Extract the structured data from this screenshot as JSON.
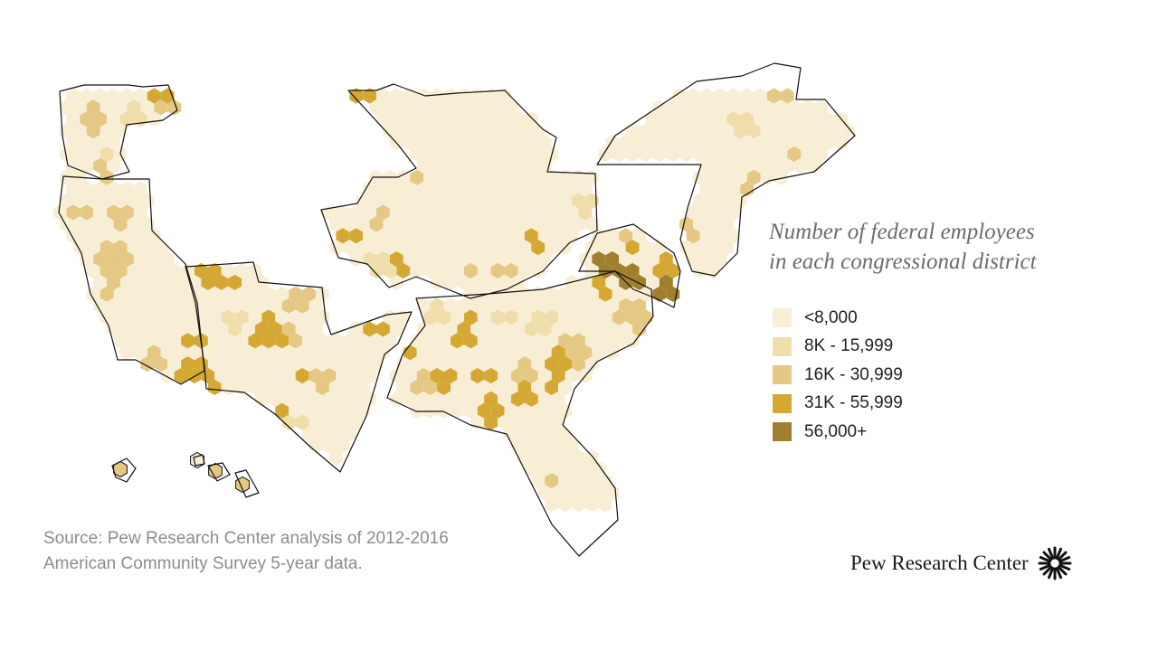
{
  "legend": {
    "title_line1": "Number of federal employees",
    "title_line2": "in each congressional district",
    "items": [
      {
        "label": "<8,000",
        "color": "#f8eed5"
      },
      {
        "label": "8K - 15,999",
        "color": "#efddab"
      },
      {
        "label": "16K - 30,999",
        "color": "#e4c884"
      },
      {
        "label": "31K - 55,999",
        "color": "#d4a833"
      },
      {
        "label": "56,000+",
        "color": "#a07f2e"
      }
    ]
  },
  "source": {
    "line1": "Source: Pew Research Center analysis of 2012-2016",
    "line2": "American Community Survey 5-year data."
  },
  "brand": {
    "name": "Pew Research Center",
    "logo_icon": "sunburst-icon"
  },
  "map": {
    "region": "United States",
    "unit": "congressional district",
    "cell_shape": "hexagon"
  }
}
